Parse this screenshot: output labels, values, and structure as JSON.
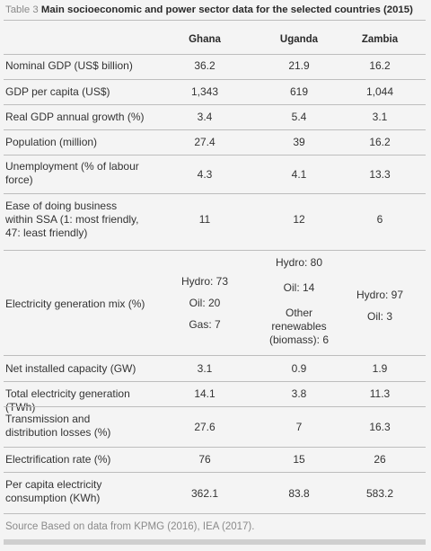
{
  "caption": {
    "label": "Table 3",
    "title": "Main socioeconomic and power sector data for the selected countries (2015)"
  },
  "columns": [
    "Ghana",
    "Uganda",
    "Zambia"
  ],
  "rows": [
    {
      "label": "Nominal GDP (US$ billion)",
      "values": [
        "36.2",
        "21.9",
        "16.2"
      ]
    },
    {
      "label": "GDP per capita (US$)",
      "values": [
        "1,343",
        "619",
        "1,044"
      ]
    },
    {
      "label": "Real GDP annual growth (%)",
      "values": [
        "3.4",
        "5.4",
        "3.1"
      ]
    },
    {
      "label": "Population (million)",
      "values": [
        "27.4",
        "39",
        "16.2"
      ]
    },
    {
      "label": "Unemployment (% of labour force)",
      "values": [
        "4.3",
        "4.1",
        "13.3"
      ]
    },
    {
      "label": "Ease of doing business within SSA (1: most friendly, 47: least friendly)",
      "values": [
        "11",
        "12",
        "6"
      ]
    },
    {
      "label": "Electricity generation mix (%)",
      "mix": {
        "ghana": [
          "Hydro: 73",
          "Oil: 20",
          "Gas: 7"
        ],
        "uganda": [
          "Hydro: 80",
          "Oil: 14",
          "Other renewables (biomass): 6"
        ],
        "zambia": [
          "Hydro: 97",
          "Oil: 3"
        ]
      }
    },
    {
      "label": "Net installed capacity (GW)",
      "values": [
        "3.1",
        "0.9",
        "1.9"
      ]
    },
    {
      "label": "Total electricity generation (TWh)",
      "values": [
        "14.1",
        "3.8",
        "11.3"
      ]
    },
    {
      "label": "Transmission and distribution losses (%)",
      "values": [
        "27.6",
        "7",
        "16.3"
      ]
    },
    {
      "label": "Electrification rate (%)",
      "values": [
        "76",
        "15",
        "26"
      ]
    },
    {
      "label": "Per capita electricity consumption (KWh)",
      "values": [
        "362.1",
        "83.8",
        "583.2"
      ]
    }
  ],
  "source": {
    "label": "Source",
    "text": "Based on data from KPMG (2016), IEA (2017)."
  }
}
